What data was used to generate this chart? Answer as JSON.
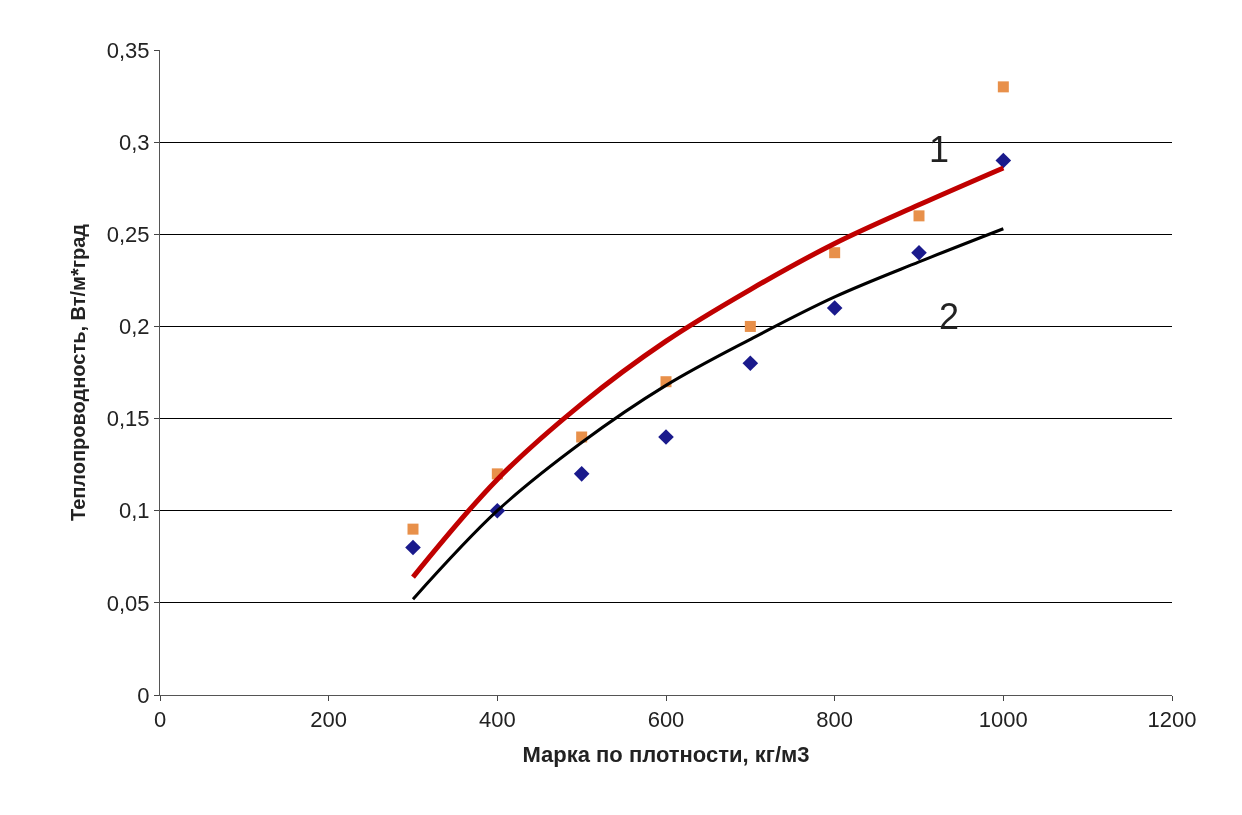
{
  "chart_data": {
    "type": "scatter",
    "xlabel": "Марка по плотности, кг/м3",
    "ylabel": "Теплопроводность, Вт/м*град",
    "x": [
      300,
      400,
      500,
      600,
      700,
      800,
      900,
      1000
    ],
    "series": [
      {
        "color": "#e8904a",
        "marker": "square",
        "values": [
          0.09,
          0.12,
          0.14,
          0.17,
          0.2,
          0.24,
          0.26,
          0.33
        ]
      },
      {
        "color": "#1a1a8c",
        "marker": "diamond",
        "values": [
          0.08,
          0.1,
          0.12,
          0.14,
          0.18,
          0.21,
          0.24,
          0.29
        ]
      },
      {
        "type": "line",
        "color": "#c00000",
        "marker": "none",
        "line_style": "solid",
        "x": [
          300,
          400,
          500,
          600,
          700,
          800,
          900,
          1000
        ],
        "values": [
          0.064,
          0.117,
          0.158,
          0.192,
          0.22,
          0.245,
          0.266,
          0.286
        ]
      },
      {
        "type": "line",
        "color": "#000000",
        "marker": "none",
        "line_style": "solid",
        "x": [
          300,
          400,
          500,
          600,
          700,
          800,
          900,
          1000
        ],
        "values": [
          0.052,
          0.1,
          0.137,
          0.168,
          0.193,
          0.216,
          0.235,
          0.253
        ]
      }
    ],
    "annotations": [
      "1",
      "2"
    ],
    "xlim": [
      0,
      1200
    ],
    "xticks": [
      0,
      200,
      400,
      600,
      800,
      1000,
      1200
    ],
    "ylim": [
      0,
      0.35
    ],
    "yticks": [
      {
        "value": 0,
        "label": "0"
      },
      {
        "value": 0.05,
        "label": "0,05"
      },
      {
        "value": 0.1,
        "label": "0,1"
      },
      {
        "value": 0.15,
        "label": "0,15"
      },
      {
        "value": 0.2,
        "label": "0,2"
      },
      {
        "value": 0.25,
        "label": "0,25"
      },
      {
        "value": 0.3,
        "label": "0,3"
      },
      {
        "value": 0.35,
        "label": "0,35"
      }
    ],
    "grid": "y",
    "legend": false
  }
}
